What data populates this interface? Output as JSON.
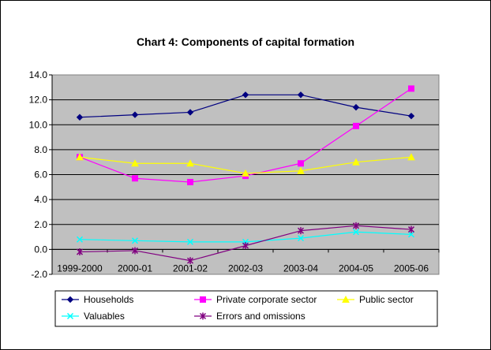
{
  "chart_data": {
    "type": "line",
    "title": "Chart 4: Components of capital formation",
    "xlabel": "",
    "ylabel": "",
    "categories": [
      "1999-2000",
      "2000-01",
      "2001-02",
      "2002-03",
      "2003-04",
      "2004-05",
      "2005-06"
    ],
    "ylim": [
      -2.0,
      14.0
    ],
    "yticks": [
      -2.0,
      0.0,
      2.0,
      4.0,
      6.0,
      8.0,
      10.0,
      12.0,
      14.0
    ],
    "ytick_labels": [
      "-2.0",
      "0.0",
      "2.0",
      "4.0",
      "6.0",
      "8.0",
      "10.0",
      "12.0",
      "14.0"
    ],
    "grid": true,
    "plot_background": "#c0c0c0",
    "legend_position": "bottom",
    "series": [
      {
        "name": "Households",
        "color": "#000080",
        "marker": "diamond",
        "values": [
          10.6,
          10.8,
          11.0,
          12.4,
          12.4,
          11.4,
          10.7
        ]
      },
      {
        "name": "Private corporate sector",
        "color": "#ff00ff",
        "marker": "square",
        "values": [
          7.4,
          5.7,
          5.4,
          5.9,
          6.9,
          9.9,
          12.9
        ]
      },
      {
        "name": "Public sector",
        "color": "#ffff00",
        "marker": "triangle",
        "values": [
          7.4,
          6.9,
          6.9,
          6.1,
          6.3,
          7.0,
          7.4
        ]
      },
      {
        "name": "Valuables",
        "color": "#00ffff",
        "marker": "x",
        "values": [
          0.8,
          0.7,
          0.6,
          0.6,
          0.9,
          1.4,
          1.2
        ]
      },
      {
        "name": "Errors and omissions",
        "color": "#800080",
        "marker": "star",
        "values": [
          -0.2,
          -0.1,
          -0.9,
          0.3,
          1.5,
          1.9,
          1.6
        ]
      }
    ]
  }
}
